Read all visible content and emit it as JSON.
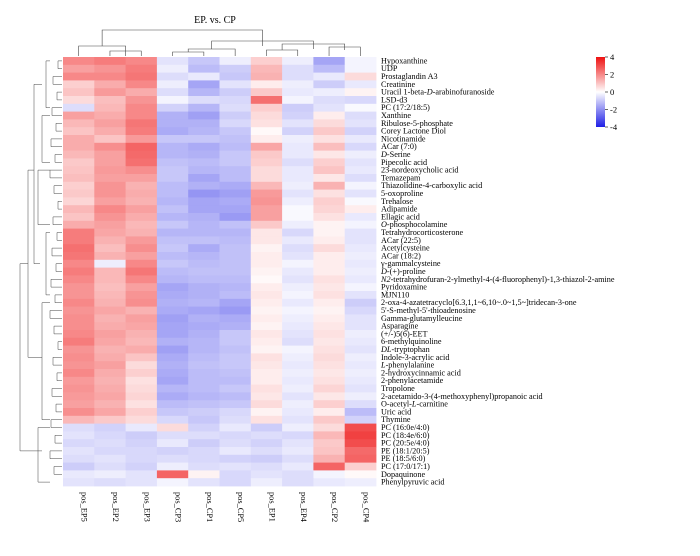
{
  "chart_data": {
    "type": "heatmap",
    "title": "EP. vs. CP",
    "columns": [
      "pos_EP5",
      "pos_EP2",
      "pos_EP3",
      "pos_CP3",
      "pos_CP1",
      "pos_CP5",
      "pos_EP1",
      "pos_EP4",
      "pos_CP2",
      "pos_CP4"
    ],
    "rows": [
      "Hypoxanthine",
      "UDP",
      "Prostaglandin A3",
      "Creatinine",
      "Uracil 1-beta-D-arabinofuranoside",
      "LSD-d3",
      "PC (17:2/18:5)",
      "Xanthine",
      "Ribulose-5-phosphate",
      "Corey Lactone Diol",
      "Nicotinamide",
      "ACar (7:0)",
      "D-Serine",
      "Pipecolic acid",
      "23-nordeoxycholic acid",
      "Temazepam",
      "Thiazolidine-4-carboxylic acid",
      "5-oxoproline",
      "Trehalose",
      "Adipamide",
      "Ellagic acid",
      "O-phosphocolamine",
      "Tetrahydrocorticosterone",
      "ACar (22:5)",
      "Acetylcysteine",
      "ACar (18:2)",
      "γ-gammalcysteine",
      "D-(+)-proline",
      "N2-tetrahydrofuran-2-ylmethyl-4-(4-fluorophenyl)-1,3-thiazol-2-amine",
      "Pyridoxamine",
      "MJN110",
      "2-oxa-4-azatetracyclo[6.3,1,1~6,10~.0~1,5~]tridecan-3-one",
      "5'-S-methyl-5'-thioadenosine",
      "Gamma-glutamylleucine",
      "Asparagine",
      "(+/-)5(6)-EET",
      "6-methylquinoline",
      "DL-tryptophan",
      "Indole-3-acrylic acid",
      "L-phenylalanine",
      "2-hydroxycinnamic acid",
      "2-phenylacetamide",
      "Tropolone",
      "2-acetamido-3-(4-methoxyphenyl)propanoic acid",
      "O-acetyl-L-carnitine",
      "Uric acid",
      "Thymine",
      "PC (16:0e/4:0)",
      "PC (18:4e/6:0)",
      "PC (20:5e/4:0)",
      "PE (18:1/20:5)",
      "PE (18:5/6:0)",
      "PC (17:0/17:1)",
      "Dopaquinone",
      "Phenylpyruvic acid"
    ],
    "values": [
      [
        2.0,
        2.2,
        2.0,
        -0.5,
        -1.0,
        -0.3,
        0.8,
        -0.3,
        -1.6,
        -0.2
      ],
      [
        1.6,
        1.8,
        2.2,
        -0.3,
        -1.2,
        -0.9,
        1.2,
        -0.6,
        -1.2,
        -0.2
      ],
      [
        2.0,
        2.0,
        2.3,
        -0.6,
        -0.4,
        -1.0,
        1.3,
        -0.6,
        -0.4,
        0.6
      ],
      [
        0.8,
        1.4,
        2.0,
        -0.3,
        -1.6,
        -0.5,
        0.3,
        -0.3,
        -0.9,
        -0.4
      ],
      [
        1.0,
        1.7,
        1.4,
        -0.6,
        -1.3,
        -0.9,
        0.9,
        -0.4,
        -0.3,
        0.2
      ],
      [
        0.6,
        1.1,
        1.8,
        -0.2,
        -0.6,
        -0.7,
        2.4,
        -0.2,
        -0.6,
        -0.7
      ],
      [
        -0.6,
        1.2,
        2.0,
        -0.8,
        -1.3,
        -0.6,
        0.8,
        -0.9,
        -0.5,
        -0.1
      ],
      [
        1.6,
        1.4,
        2.0,
        -1.4,
        -1.7,
        -0.9,
        0.6,
        -0.8,
        0.3,
        -0.6
      ],
      [
        1.2,
        1.6,
        2.3,
        -1.4,
        -1.4,
        -0.7,
        0.5,
        -0.5,
        0.6,
        -0.5
      ],
      [
        1.0,
        1.4,
        2.2,
        -1.5,
        -1.3,
        -1.0,
        0.1,
        -0.8,
        0.9,
        -0.8
      ],
      [
        1.4,
        1.0,
        1.7,
        -1.0,
        -1.0,
        -1.1,
        0.3,
        -0.3,
        0.5,
        -0.4
      ],
      [
        1.4,
        1.9,
        2.6,
        -1.3,
        -1.5,
        -1.2,
        1.5,
        -0.4,
        1.1,
        -0.7
      ],
      [
        1.2,
        1.6,
        2.5,
        -1.3,
        -1.4,
        -1.0,
        0.9,
        -0.4,
        0.4,
        -0.3
      ],
      [
        0.9,
        1.6,
        2.4,
        -1.1,
        -1.2,
        -1.0,
        0.8,
        -0.6,
        0.8,
        -0.5
      ],
      [
        1.0,
        1.7,
        1.9,
        -1.0,
        -1.3,
        -1.2,
        0.6,
        -0.4,
        1.0,
        -0.4
      ],
      [
        1.1,
        1.6,
        1.6,
        -1.0,
        -1.6,
        -1.2,
        0.6,
        -0.4,
        0.4,
        -0.6
      ],
      [
        0.8,
        1.8,
        1.3,
        -1.2,
        -1.4,
        -1.5,
        1.2,
        -0.3,
        1.3,
        -0.2
      ],
      [
        0.9,
        1.8,
        1.4,
        -1.2,
        -1.9,
        -1.7,
        1.7,
        -0.5,
        0.5,
        -0.5
      ],
      [
        0.7,
        1.6,
        1.3,
        -1.3,
        -1.6,
        -1.5,
        1.8,
        -0.3,
        0.8,
        -0.1
      ],
      [
        1.2,
        2.0,
        1.6,
        -1.1,
        -1.6,
        -1.6,
        1.6,
        -0.1,
        0.7,
        0.3
      ],
      [
        1.0,
        1.8,
        1.4,
        -1.3,
        -1.4,
        -1.8,
        1.6,
        -0.1,
        0.5,
        -0.4
      ],
      [
        1.4,
        1.6,
        1.2,
        -1.0,
        -1.3,
        -1.1,
        0.9,
        -0.3,
        0.2,
        -0.2
      ],
      [
        2.2,
        1.5,
        1.3,
        -1.3,
        -1.3,
        -1.3,
        0.4,
        -0.7,
        0.2,
        -0.5
      ],
      [
        2.2,
        1.3,
        1.7,
        -1.1,
        -1.1,
        -1.2,
        0.4,
        -0.4,
        0.3,
        -0.5
      ],
      [
        2.4,
        1.1,
        1.9,
        -1.0,
        -1.5,
        -1.1,
        0.2,
        -0.6,
        0.6,
        -0.4
      ],
      [
        2.3,
        1.3,
        1.6,
        -1.2,
        -1.3,
        -1.1,
        0.3,
        -0.5,
        0.3,
        -0.3
      ],
      [
        2.0,
        -0.3,
        2.0,
        -1.0,
        -1.2,
        -1.1,
        0.3,
        -0.2,
        0.3,
        -0.4
      ],
      [
        2.2,
        1.2,
        2.3,
        -1.2,
        -1.1,
        -1.1,
        0.2,
        -0.4,
        0.3,
        -0.3
      ],
      [
        2.0,
        1.2,
        2.0,
        -1.3,
        -1.2,
        -1.2,
        0.1,
        -0.5,
        0.5,
        -0.4
      ],
      [
        1.8,
        1.1,
        1.6,
        -1.6,
        -1.4,
        -1.3,
        0.3,
        -0.3,
        0.4,
        -0.2
      ],
      [
        1.8,
        1.2,
        1.8,
        -1.5,
        -1.4,
        -1.2,
        0.4,
        -0.2,
        0.5,
        -0.5
      ],
      [
        2.0,
        1.3,
        1.9,
        -1.4,
        -1.3,
        -1.6,
        0.3,
        -0.4,
        0.3,
        -0.9
      ],
      [
        1.8,
        1.5,
        1.3,
        -1.5,
        -1.6,
        -1.8,
        0.2,
        -0.2,
        0.2,
        -0.7
      ],
      [
        1.9,
        1.3,
        1.6,
        -1.7,
        -1.4,
        -1.5,
        0.3,
        -0.3,
        0.3,
        -0.5
      ],
      [
        1.9,
        1.4,
        1.5,
        -1.6,
        -1.5,
        -1.4,
        0.2,
        -0.4,
        0.4,
        -0.5
      ],
      [
        2.0,
        1.6,
        1.3,
        -1.6,
        -1.4,
        -1.0,
        0.4,
        -0.5,
        0.5,
        -0.3
      ],
      [
        2.2,
        1.5,
        1.2,
        -1.4,
        -1.3,
        -1.0,
        0.3,
        -0.6,
        0.4,
        -0.4
      ],
      [
        1.8,
        1.3,
        1.4,
        -1.7,
        -1.3,
        -1.1,
        0.2,
        -0.2,
        0.5,
        -0.5
      ],
      [
        1.9,
        1.4,
        1.0,
        -1.5,
        -1.2,
        -1.0,
        0.5,
        -0.3,
        0.6,
        -0.3
      ],
      [
        1.8,
        1.6,
        0.6,
        -1.4,
        -1.1,
        -1.0,
        0.4,
        -0.4,
        0.5,
        -0.4
      ],
      [
        2.0,
        1.4,
        0.8,
        -1.5,
        -1.2,
        -1.1,
        0.3,
        -0.3,
        0.4,
        -0.3
      ],
      [
        1.7,
        1.3,
        0.5,
        -1.6,
        -1.2,
        -1.2,
        0.3,
        -0.4,
        0.5,
        -0.4
      ],
      [
        1.8,
        1.4,
        0.6,
        -1.3,
        -1.2,
        -1.0,
        0.5,
        -0.3,
        0.7,
        -0.5
      ],
      [
        1.7,
        1.5,
        0.7,
        -1.5,
        -1.3,
        -1.2,
        0.4,
        -0.5,
        0.4,
        -0.3
      ],
      [
        1.6,
        1.3,
        0.5,
        -1.2,
        -1.1,
        -1.0,
        0.6,
        -0.3,
        0.8,
        -0.6
      ],
      [
        1.9,
        1.5,
        0.8,
        -1.0,
        -0.9,
        -0.7,
        0.2,
        -0.4,
        0.3,
        -1.2
      ],
      [
        1.2,
        0.9,
        0.6,
        -0.7,
        -1.0,
        -0.6,
        0.5,
        -0.5,
        0.9,
        -0.8
      ],
      [
        -0.6,
        -0.8,
        -0.4,
        0.6,
        -0.8,
        -0.4,
        -0.9,
        -0.3,
        0.6,
        3.0
      ],
      [
        -0.5,
        -0.7,
        -0.9,
        -0.6,
        -0.6,
        -0.7,
        -0.6,
        -0.7,
        1.2,
        3.2
      ],
      [
        -0.7,
        -0.6,
        -0.8,
        -0.4,
        -0.9,
        -0.6,
        -0.8,
        -0.5,
        0.9,
        3.0
      ],
      [
        -0.5,
        -0.7,
        -0.7,
        -0.8,
        -0.7,
        -0.4,
        -0.6,
        -0.4,
        1.0,
        2.5
      ],
      [
        -0.6,
        -0.5,
        -0.7,
        -0.6,
        -0.7,
        -0.8,
        -0.9,
        -0.6,
        1.3,
        2.6
      ],
      [
        -0.9,
        -0.6,
        -0.8,
        -0.3,
        -0.6,
        -0.5,
        -0.6,
        -0.4,
        2.6,
        0.8
      ],
      [
        -0.4,
        -0.3,
        -0.5,
        2.6,
        0.2,
        -0.7,
        -0.5,
        -0.6,
        -0.2,
        0.1
      ],
      [
        -0.5,
        -0.6,
        -0.5,
        -0.2,
        -0.5,
        -0.7,
        -0.3,
        -0.6,
        -0.4,
        -0.3
      ]
    ],
    "italic_prefix": {
      "Uracil 1-beta-D-arabinofuranoside": "",
      "D-Serine": "D",
      "O-phosphocolamine": "O",
      "D-(+)-proline": "D",
      "N2-tetrahydrofuran-2-ylmethyl-4-(4-fluorophenyl)-1,3-thiazol-2-amine": "N2",
      "DL-tryptophan": "DL",
      "L-phenylalanine": "L"
    },
    "color_scale": {
      "min": -4,
      "max": 4,
      "ticks": [
        4,
        2,
        0,
        -2,
        -4
      ],
      "low": "#1f1fe6",
      "mid": "#ffffff",
      "high": "#ee1111"
    },
    "row_dendrogram": true,
    "column_dendrogram": true
  }
}
